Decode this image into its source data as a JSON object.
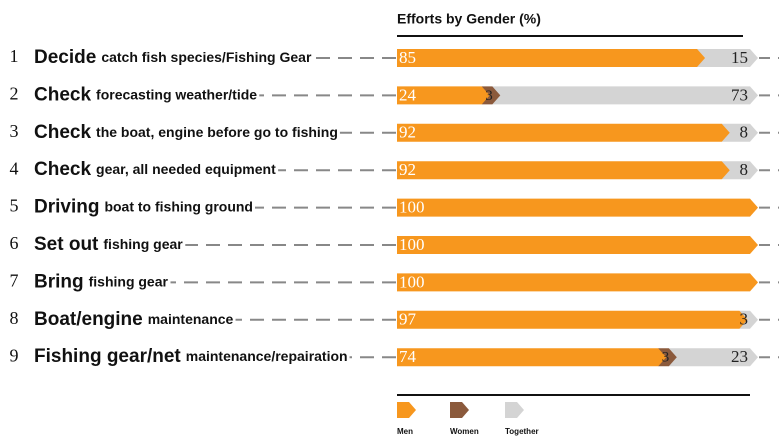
{
  "chart_data": {
    "type": "stacked_arrow_bar",
    "title": "Efforts by Gender (%)",
    "row_numbers": [
      1,
      2,
      3,
      4,
      5,
      6,
      7,
      8,
      9
    ],
    "categories": [
      {
        "lead": "Decide",
        "rest": "catch fish species/Fishing Gear"
      },
      {
        "lead": "Check",
        "rest": "forecasting weather/tide"
      },
      {
        "lead": "Check",
        "rest": "the boat, engine before go to fishing"
      },
      {
        "lead": "Check",
        "rest": "gear, all needed equipment"
      },
      {
        "lead": "Driving",
        "rest": "boat to fishing ground"
      },
      {
        "lead": "Set out",
        "rest": "fishing gear"
      },
      {
        "lead": "Bring",
        "rest": "fishing gear"
      },
      {
        "lead": "Boat/engine",
        "rest": "maintenance"
      },
      {
        "lead": "Fishing gear/net",
        "rest": "maintenance/repairation"
      }
    ],
    "xlim": [
      0,
      100
    ],
    "series": [
      {
        "name": "Men",
        "color": "#f7971e",
        "values": [
          85,
          24,
          92,
          92,
          100,
          100,
          100,
          97,
          74
        ]
      },
      {
        "name": "Women",
        "color": "#8b5a3c",
        "values": [
          0,
          3,
          0,
          0,
          0,
          0,
          0,
          0,
          3
        ]
      },
      {
        "name": "Together",
        "color": "#d4d4d4",
        "values": [
          15,
          73,
          8,
          8,
          0,
          0,
          0,
          3,
          23
        ]
      }
    ]
  }
}
